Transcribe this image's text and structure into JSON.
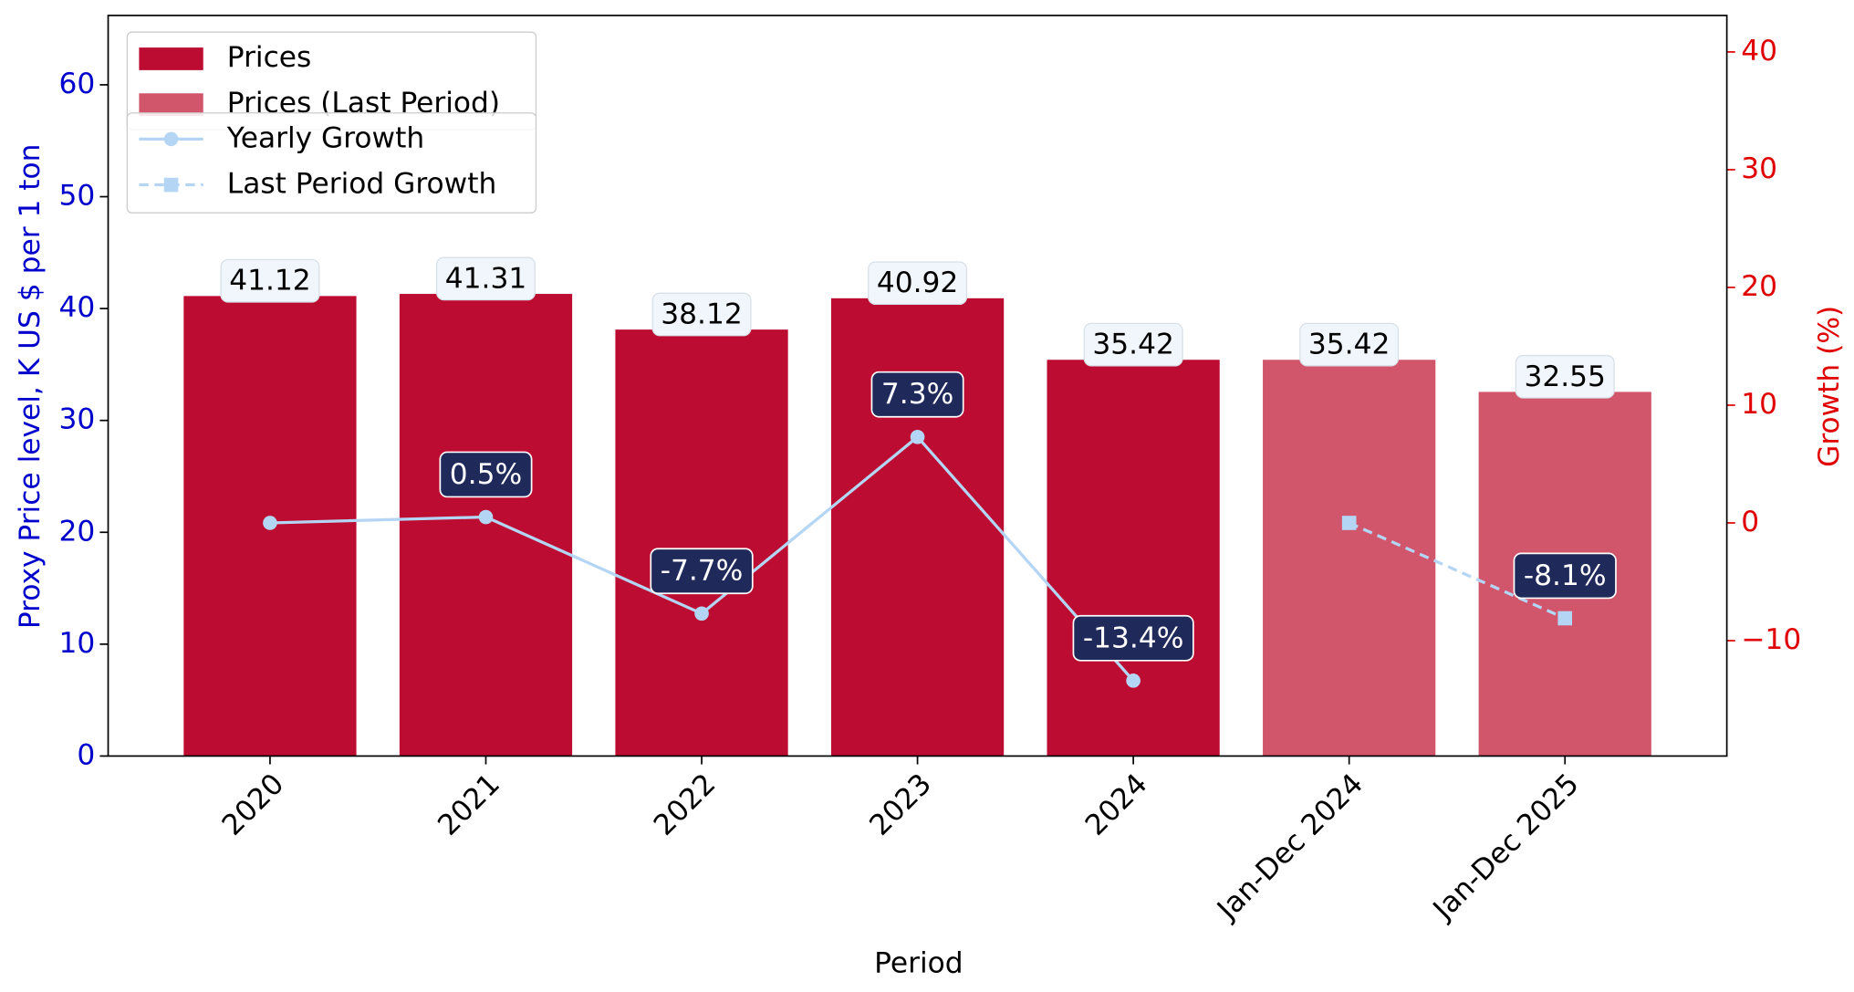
{
  "chart_data": {
    "type": "bar",
    "categories": [
      "2020",
      "2021",
      "2022",
      "2023",
      "2024",
      "Jan-Dec 2024",
      "Jan-Dec 2025"
    ],
    "xlabel": "Period",
    "ylabel": "Proxy Price level, K US $ per 1 ton",
    "y2label": "Growth (%)",
    "ylim": [
      0,
      66.2
    ],
    "yticks": [
      0,
      10,
      20,
      30,
      40,
      50,
      60
    ],
    "y2lim": [
      -19.8,
      43.1
    ],
    "y2ticks": [
      {
        "value": -10,
        "label": "−10"
      },
      0,
      10,
      20,
      30,
      40
    ],
    "series": [
      {
        "name": "Prices",
        "type": "bar",
        "color": "#bc0c31",
        "values": [
          41.12,
          41.31,
          38.12,
          40.92,
          35.42,
          null,
          null
        ]
      },
      {
        "name": "Prices (Last Period)",
        "type": "bar",
        "color": "#d1566c",
        "values": [
          null,
          null,
          null,
          null,
          null,
          35.42,
          32.55
        ]
      },
      {
        "name": "Yearly Growth",
        "type": "line",
        "axis": "y2",
        "color": "#b5d5f5",
        "marker": "circle",
        "values": [
          0,
          0.5,
          -7.7,
          7.3,
          -13.4,
          null,
          null
        ],
        "value_labels": [
          null,
          "0.5%",
          "-7.7%",
          "7.3%",
          "-13.4%",
          null,
          null
        ]
      },
      {
        "name": "Last Period Growth",
        "type": "line",
        "axis": "y2",
        "color": "#b5d5f5",
        "marker": "square",
        "dashed": true,
        "values": [
          null,
          null,
          null,
          null,
          null,
          0,
          -8.1
        ],
        "value_labels": [
          null,
          null,
          null,
          null,
          null,
          null,
          "-8.1%"
        ]
      }
    ]
  }
}
